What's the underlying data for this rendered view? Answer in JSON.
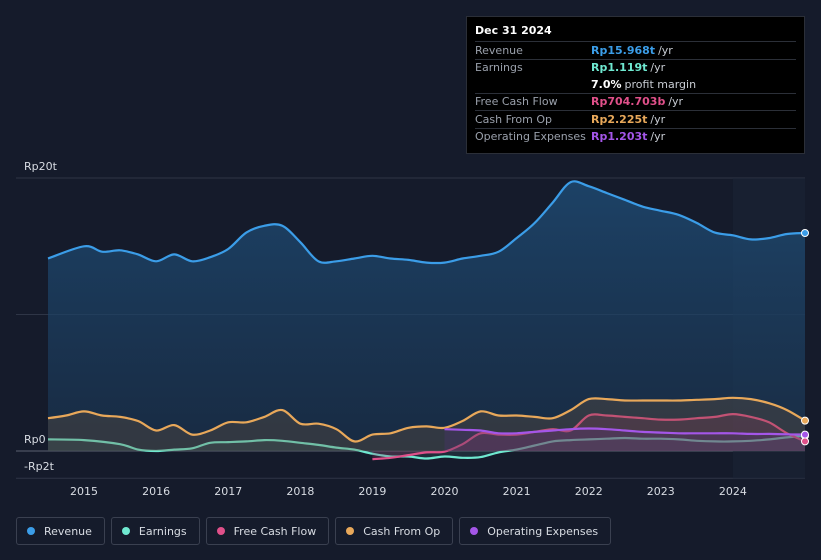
{
  "tooltip": {
    "date": "Dec 31 2024",
    "rows": [
      {
        "label": "Revenue",
        "value": "Rp15.968t",
        "unit": "/yr",
        "color": "#3b9de8"
      },
      {
        "label": "Earnings",
        "value": "Rp1.119t",
        "unit": "/yr",
        "color": "#6fe8d0"
      },
      {
        "label": "",
        "value": "7.0%",
        "unit": "profit margin",
        "color": "#ffffff"
      },
      {
        "label": "Free Cash Flow",
        "value": "Rp704.703b",
        "unit": "/yr",
        "color": "#e0508a"
      },
      {
        "label": "Cash From Op",
        "value": "Rp2.225t",
        "unit": "/yr",
        "color": "#e8a85a"
      },
      {
        "label": "Operating Expenses",
        "value": "Rp1.203t",
        "unit": "/yr",
        "color": "#a456e8"
      }
    ]
  },
  "legend": [
    {
      "label": "Revenue",
      "color": "#3b9de8"
    },
    {
      "label": "Earnings",
      "color": "#6fe8d0"
    },
    {
      "label": "Free Cash Flow",
      "color": "#e0508a"
    },
    {
      "label": "Cash From Op",
      "color": "#e8a85a"
    },
    {
      "label": "Operating Expenses",
      "color": "#a456e8"
    }
  ],
  "chart_data": {
    "type": "area",
    "y_labels": {
      "top": "Rp20t",
      "zero": "Rp0",
      "bottom": "-Rp2t"
    },
    "ylim": [
      -2,
      20
    ],
    "x_ticks": [
      "2015",
      "2016",
      "2017",
      "2018",
      "2019",
      "2020",
      "2021",
      "2022",
      "2023",
      "2024"
    ],
    "xlim": [
      2014.5,
      2025.0
    ],
    "series": [
      {
        "name": "Revenue",
        "color": "#3b9de8",
        "x": [
          2014.5,
          2015.0,
          2015.25,
          2015.5,
          2015.75,
          2016.0,
          2016.25,
          2016.5,
          2016.75,
          2017.0,
          2017.25,
          2017.5,
          2017.75,
          2018.0,
          2018.25,
          2018.5,
          2018.75,
          2019.0,
          2019.25,
          2019.5,
          2019.75,
          2020.0,
          2020.25,
          2020.5,
          2020.75,
          2021.0,
          2021.25,
          2021.5,
          2021.75,
          2022.0,
          2022.25,
          2022.5,
          2022.75,
          2023.0,
          2023.25,
          2023.5,
          2023.75,
          2024.0,
          2024.25,
          2024.5,
          2024.75,
          2025.0
        ],
        "y": [
          14.1,
          15.0,
          14.6,
          14.7,
          14.4,
          13.9,
          14.4,
          13.9,
          14.2,
          14.8,
          16.0,
          16.5,
          16.5,
          15.3,
          13.9,
          13.9,
          14.1,
          14.3,
          14.1,
          14.0,
          13.8,
          13.8,
          14.1,
          14.3,
          14.6,
          15.6,
          16.7,
          18.2,
          19.7,
          19.4,
          18.9,
          18.4,
          17.9,
          17.6,
          17.3,
          16.7,
          16.0,
          15.8,
          15.5,
          15.6,
          15.9,
          15.97
        ]
      },
      {
        "name": "Earnings",
        "color": "#6fe8d0",
        "x": [
          2014.5,
          2015.0,
          2015.5,
          2015.75,
          2016.0,
          2016.25,
          2016.5,
          2016.75,
          2017.0,
          2017.25,
          2017.5,
          2017.75,
          2018.0,
          2018.25,
          2018.5,
          2018.75,
          2019.0,
          2019.25,
          2019.5,
          2019.75,
          2020.0,
          2020.25,
          2020.5,
          2020.75,
          2021.0,
          2021.25,
          2021.5,
          2021.75,
          2022.0,
          2022.25,
          2022.5,
          2022.75,
          2023.0,
          2023.25,
          2023.5,
          2023.75,
          2024.0,
          2024.25,
          2024.5,
          2024.75,
          2025.0
        ],
        "y": [
          0.85,
          0.8,
          0.5,
          0.1,
          0.0,
          0.1,
          0.2,
          0.6,
          0.65,
          0.7,
          0.8,
          0.75,
          0.6,
          0.45,
          0.25,
          0.1,
          -0.2,
          -0.4,
          -0.4,
          -0.55,
          -0.4,
          -0.5,
          -0.45,
          -0.1,
          0.1,
          0.4,
          0.7,
          0.8,
          0.85,
          0.9,
          0.95,
          0.9,
          0.9,
          0.85,
          0.75,
          0.7,
          0.7,
          0.75,
          0.85,
          1.0,
          1.119
        ]
      },
      {
        "name": "Free Cash Flow",
        "color": "#e0508a",
        "x": [
          2019.0,
          2019.25,
          2019.5,
          2019.75,
          2020.0,
          2020.25,
          2020.5,
          2020.75,
          2021.0,
          2021.25,
          2021.5,
          2021.75,
          2022.0,
          2022.25,
          2022.5,
          2022.75,
          2023.0,
          2023.25,
          2023.5,
          2023.75,
          2024.0,
          2024.25,
          2024.5,
          2024.75,
          2025.0
        ],
        "y": [
          -0.6,
          -0.5,
          -0.3,
          -0.1,
          -0.05,
          0.5,
          1.3,
          1.2,
          1.2,
          1.4,
          1.6,
          1.5,
          2.6,
          2.6,
          2.5,
          2.4,
          2.3,
          2.3,
          2.4,
          2.5,
          2.7,
          2.5,
          2.1,
          1.3,
          0.705
        ]
      },
      {
        "name": "Cash From Op",
        "color": "#e8a85a",
        "x": [
          2014.5,
          2014.75,
          2015.0,
          2015.25,
          2015.5,
          2015.75,
          2016.0,
          2016.25,
          2016.5,
          2016.75,
          2017.0,
          2017.25,
          2017.5,
          2017.75,
          2018.0,
          2018.25,
          2018.5,
          2018.75,
          2019.0,
          2019.25,
          2019.5,
          2019.75,
          2020.0,
          2020.25,
          2020.5,
          2020.75,
          2021.0,
          2021.25,
          2021.5,
          2021.75,
          2022.0,
          2022.25,
          2022.5,
          2022.75,
          2023.0,
          2023.25,
          2023.5,
          2023.75,
          2024.0,
          2024.25,
          2024.5,
          2024.75,
          2025.0
        ],
        "y": [
          2.4,
          2.6,
          2.9,
          2.6,
          2.5,
          2.2,
          1.5,
          1.9,
          1.2,
          1.5,
          2.1,
          2.1,
          2.5,
          3.0,
          2.0,
          2.0,
          1.6,
          0.7,
          1.2,
          1.3,
          1.7,
          1.8,
          1.7,
          2.2,
          2.9,
          2.6,
          2.6,
          2.5,
          2.4,
          3.0,
          3.8,
          3.8,
          3.7,
          3.7,
          3.7,
          3.7,
          3.75,
          3.8,
          3.9,
          3.8,
          3.5,
          3.0,
          2.225
        ]
      },
      {
        "name": "Operating Expenses",
        "color": "#a456e8",
        "x": [
          2020.0,
          2020.25,
          2020.5,
          2020.75,
          2021.0,
          2021.25,
          2021.5,
          2021.75,
          2022.0,
          2022.25,
          2022.5,
          2022.75,
          2023.0,
          2023.25,
          2023.5,
          2023.75,
          2024.0,
          2024.25,
          2024.5,
          2024.75,
          2025.0
        ],
        "y": [
          1.6,
          1.55,
          1.5,
          1.3,
          1.3,
          1.4,
          1.5,
          1.6,
          1.65,
          1.6,
          1.5,
          1.4,
          1.35,
          1.3,
          1.3,
          1.3,
          1.3,
          1.25,
          1.25,
          1.22,
          1.203
        ]
      }
    ],
    "highlight_from": 2024.0,
    "grid": true,
    "legend_position": "bottom-left"
  }
}
